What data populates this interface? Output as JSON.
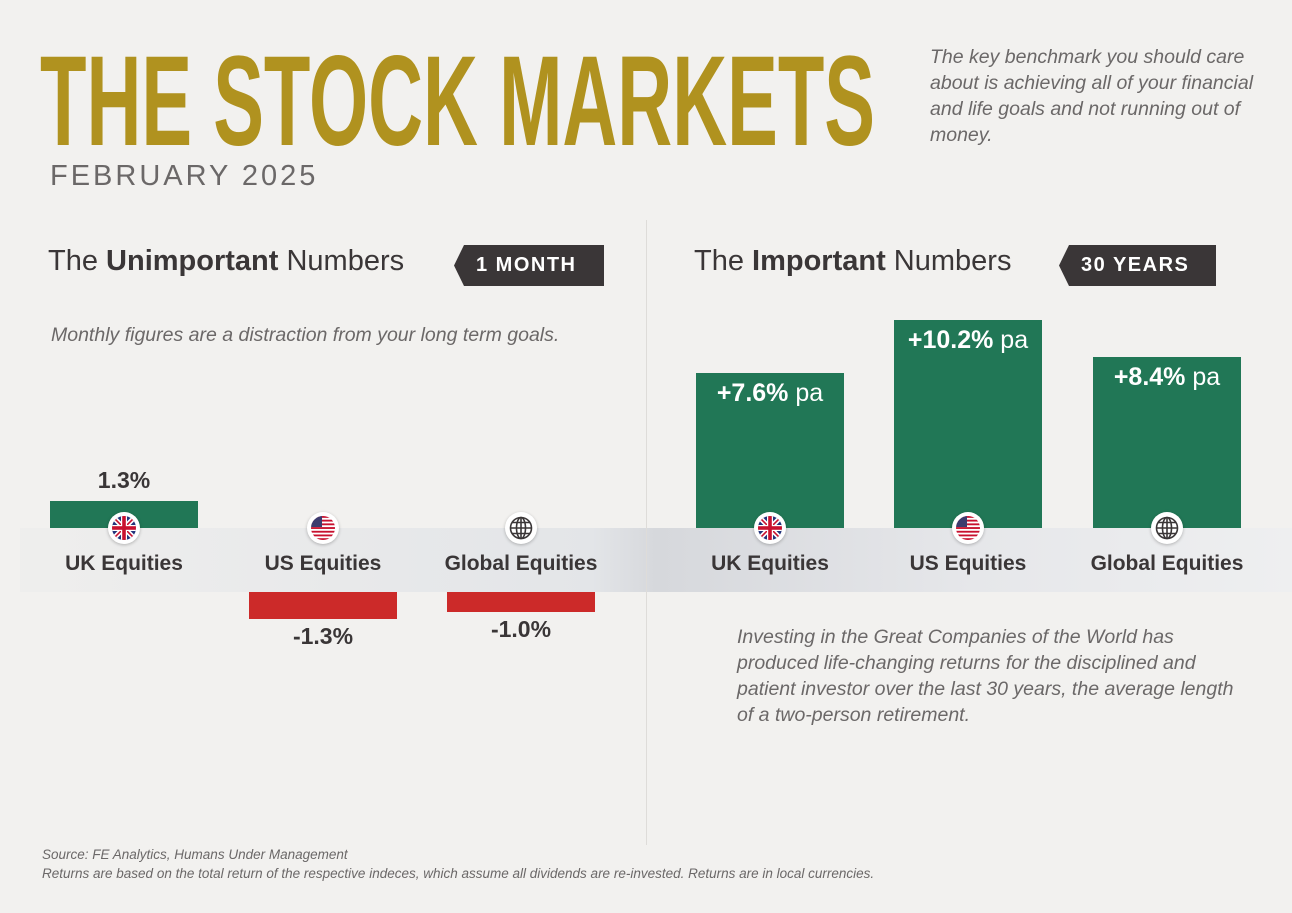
{
  "header": {
    "title": "THE STOCK MARKETS",
    "subtitle": "FEBRUARY 2025",
    "intro": "The key benchmark you should care about is achieving all of your financial and life goals and not running out of money."
  },
  "colors": {
    "title": "#b0921f",
    "positive": "#217756",
    "negative": "#cc2a29",
    "tag": "#3a3637"
  },
  "chart_data": [
    {
      "type": "bar",
      "title_pre": "The ",
      "title_bold": "Unimportant",
      "title_post": " Numbers",
      "period": "1 MONTH",
      "note": "Monthly figures are a distraction from your long term goals.",
      "categories": [
        "UK Equities",
        "US Equities",
        "Global Equities"
      ],
      "icons": [
        "uk-flag-icon",
        "us-flag-icon",
        "globe-icon"
      ],
      "values": [
        1.3,
        -1.3,
        -1.0
      ],
      "labels": [
        "1.3%",
        "-1.3%",
        "-1.0%"
      ],
      "unit": "%"
    },
    {
      "type": "bar",
      "title_pre": "The ",
      "title_bold": "Important",
      "title_post": " Numbers",
      "period": "30 YEARS",
      "note": "Investing in the Great Companies of the World has produced life-changing returns for the disciplined and patient investor over the last 30 years, the average length of a two-person retirement.",
      "categories": [
        "UK Equities",
        "US Equities",
        "Global Equities"
      ],
      "icons": [
        "uk-flag-icon",
        "us-flag-icon",
        "globe-icon"
      ],
      "values": [
        7.6,
        10.2,
        8.4
      ],
      "labels": [
        "+7.6%",
        "+10.2%",
        "+8.4%"
      ],
      "suffix": " pa",
      "unit": "% pa"
    }
  ],
  "footer": {
    "source": "Source: FE Analytics, Humans Under Management",
    "disclaimer": "Returns are based on the total return of the respective indeces, which assume all dividends are re-invested. Returns are in local currencies."
  }
}
